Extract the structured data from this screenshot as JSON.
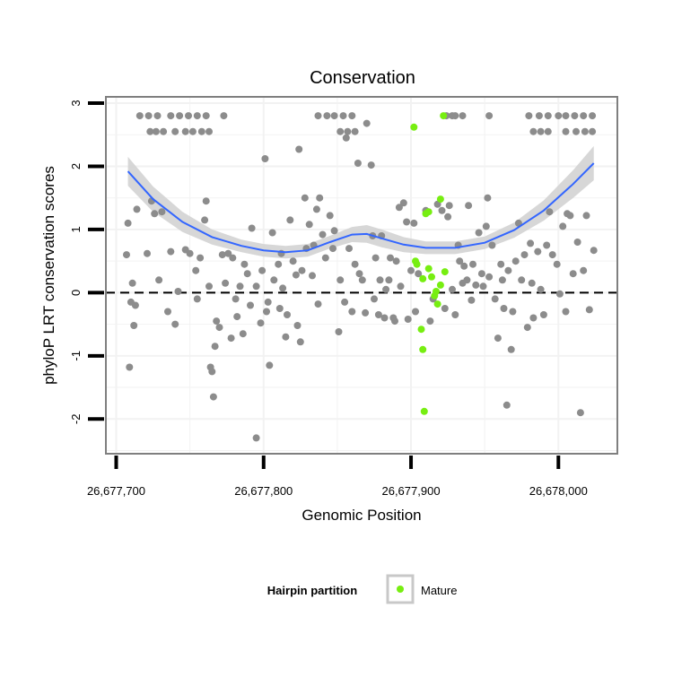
{
  "chart_data": {
    "type": "scatter",
    "title": "Conservation",
    "xlabel": "Genomic Position",
    "ylabel": "phyloP LRT conservation scores",
    "xlim": [
      26677693,
      26678040
    ],
    "ylim": [
      -2.55,
      3.1
    ],
    "x_ticks": [
      26677700,
      26677800,
      26677900,
      26678000
    ],
    "x_tick_labels": [
      "26,677,700",
      "26,677,800",
      "26,677,900",
      "26,678,000"
    ],
    "y_ticks": [
      -2,
      -1,
      0,
      1,
      2,
      3
    ],
    "y_tick_labels": [
      "-2",
      "-1",
      "0",
      "1",
      "2",
      "3"
    ],
    "reference_line": {
      "y": 0,
      "style": "dashed"
    },
    "grid": true,
    "legend": {
      "title": "Hairpin partition",
      "position": "bottom",
      "entries": [
        "Mature"
      ]
    },
    "colors": {
      "background_points": "#8c8c8c",
      "mature": "#77ee11",
      "smooth_line": "#3366ff",
      "confidence_band": "#d3d3d3",
      "panel_border": "#7f7f7f",
      "grid": "#f2f2f2"
    },
    "series": [
      {
        "name": "",
        "color": "#8c8c8c",
        "points": [
          [
            26677708,
            1.1
          ],
          [
            26677707,
            0.6
          ],
          [
            26677710,
            -0.15
          ],
          [
            26677711,
            0.15
          ],
          [
            26677709,
            -1.18
          ],
          [
            26677712,
            -0.52
          ],
          [
            26677713,
            -0.2
          ],
          [
            26677714,
            1.32
          ],
          [
            26677721,
            0.62
          ],
          [
            26677724,
            1.45
          ],
          [
            26677726,
            1.25
          ],
          [
            26677729,
            0.2
          ],
          [
            26677731,
            1.28
          ],
          [
            26677735,
            -0.3
          ],
          [
            26677737,
            0.65
          ],
          [
            26677740,
            -0.5
          ],
          [
            26677742,
            0.02
          ],
          [
            26677747,
            0.68
          ],
          [
            26677750,
            0.62
          ],
          [
            26677754,
            0.35
          ],
          [
            26677755,
            -0.1
          ],
          [
            26677757,
            0.55
          ],
          [
            26677760,
            1.15
          ],
          [
            26677761,
            1.45
          ],
          [
            26677763,
            0.1
          ],
          [
            26677764,
            -1.18
          ],
          [
            26677765,
            -1.25
          ],
          [
            26677767,
            -0.85
          ],
          [
            26677766,
            -1.65
          ],
          [
            26677768,
            -0.45
          ],
          [
            26677770,
            -0.55
          ],
          [
            26677772,
            0.6
          ],
          [
            26677774,
            0.15
          ],
          [
            26677776,
            0.62
          ],
          [
            26677778,
            -0.72
          ],
          [
            26677779,
            0.55
          ],
          [
            26677781,
            -0.1
          ],
          [
            26677782,
            -0.38
          ],
          [
            26677784,
            0.1
          ],
          [
            26677786,
            -0.65
          ],
          [
            26677787,
            0.45
          ],
          [
            26677789,
            0.3
          ],
          [
            26677791,
            -0.2
          ],
          [
            26677792,
            1.02
          ],
          [
            26677795,
            -2.3
          ],
          [
            26677795,
            0.1
          ],
          [
            26677798,
            -0.48
          ],
          [
            26677799,
            0.35
          ],
          [
            26677801,
            2.12
          ],
          [
            26677802,
            -0.3
          ],
          [
            26677803,
            -0.15
          ],
          [
            26677804,
            -1.15
          ],
          [
            26677806,
            0.95
          ],
          [
            26677807,
            0.2
          ],
          [
            26677810,
            0.45
          ],
          [
            26677811,
            -0.25
          ],
          [
            26677812,
            0.62
          ],
          [
            26677813,
            0.07
          ],
          [
            26677815,
            -0.7
          ],
          [
            26677816,
            -0.35
          ],
          [
            26677818,
            1.15
          ],
          [
            26677820,
            0.5
          ],
          [
            26677822,
            0.28
          ],
          [
            26677823,
            -0.52
          ],
          [
            26677824,
            2.27
          ],
          [
            26677825,
            -0.78
          ],
          [
            26677826,
            0.35
          ],
          [
            26677828,
            1.5
          ],
          [
            26677829,
            0.7
          ],
          [
            26677831,
            1.08
          ],
          [
            26677833,
            0.27
          ],
          [
            26677834,
            0.75
          ],
          [
            26677836,
            1.32
          ],
          [
            26677837,
            -0.18
          ],
          [
            26677838,
            1.5
          ],
          [
            26677840,
            0.92
          ],
          [
            26677842,
            0.55
          ],
          [
            26677845,
            1.22
          ],
          [
            26677847,
            0.7
          ],
          [
            26677848,
            0.98
          ],
          [
            26677851,
            -0.62
          ],
          [
            26677852,
            0.2
          ],
          [
            26677855,
            -0.15
          ],
          [
            26677856,
            2.45
          ],
          [
            26677858,
            0.7
          ],
          [
            26677860,
            -0.3
          ],
          [
            26677862,
            0.45
          ],
          [
            26677864,
            2.05
          ],
          [
            26677865,
            0.3
          ],
          [
            26677867,
            0.2
          ],
          [
            26677869,
            -0.32
          ],
          [
            26677870,
            2.68
          ],
          [
            26677873,
            2.02
          ],
          [
            26677874,
            0.9
          ],
          [
            26677875,
            -0.1
          ],
          [
            26677876,
            0.55
          ],
          [
            26677878,
            -0.35
          ],
          [
            26677879,
            0.2
          ],
          [
            26677880,
            0.9
          ],
          [
            26677882,
            -0.4
          ],
          [
            26677883,
            0.05
          ],
          [
            26677885,
            0.2
          ],
          [
            26677886,
            0.55
          ],
          [
            26677888,
            -0.4
          ],
          [
            26677889,
            -0.45
          ],
          [
            26677890,
            0.5
          ],
          [
            26677892,
            1.35
          ],
          [
            26677893,
            0.1
          ],
          [
            26677895,
            1.42
          ],
          [
            26677897,
            1.12
          ],
          [
            26677898,
            -0.42
          ],
          [
            26677900,
            0.35
          ],
          [
            26677902,
            1.1
          ],
          [
            26677903,
            -0.3
          ],
          [
            26677905,
            0.3
          ],
          [
            26677910,
            1.3
          ],
          [
            26677913,
            -0.45
          ],
          [
            26677915,
            -0.1
          ],
          [
            26677918,
            1.4
          ],
          [
            26677921,
            1.3
          ],
          [
            26677923,
            -0.25
          ],
          [
            26677925,
            1.2
          ],
          [
            26677926,
            1.38
          ],
          [
            26677928,
            0.05
          ],
          [
            26677930,
            -0.35
          ],
          [
            26677932,
            0.75
          ],
          [
            26677933,
            0.5
          ],
          [
            26677935,
            0.15
          ],
          [
            26677936,
            0.42
          ],
          [
            26677938,
            0.2
          ],
          [
            26677939,
            1.38
          ],
          [
            26677941,
            -0.12
          ],
          [
            26677942,
            0.45
          ],
          [
            26677944,
            0.12
          ],
          [
            26677946,
            0.95
          ],
          [
            26677948,
            0.3
          ],
          [
            26677949,
            0.1
          ],
          [
            26677951,
            1.05
          ],
          [
            26677952,
            1.5
          ],
          [
            26677953,
            0.25
          ],
          [
            26677955,
            0.75
          ],
          [
            26677957,
            -0.1
          ],
          [
            26677959,
            -0.72
          ],
          [
            26677961,
            0.45
          ],
          [
            26677962,
            0.2
          ],
          [
            26677963,
            -0.25
          ],
          [
            26677965,
            -1.78
          ],
          [
            26677966,
            0.35
          ],
          [
            26677968,
            -0.9
          ],
          [
            26677969,
            -0.3
          ],
          [
            26677971,
            0.5
          ],
          [
            26677973,
            1.1
          ],
          [
            26677975,
            0.2
          ],
          [
            26677977,
            0.6
          ],
          [
            26677979,
            -0.55
          ],
          [
            26677981,
            0.78
          ],
          [
            26677982,
            0.15
          ],
          [
            26677983,
            -0.4
          ],
          [
            26677986,
            0.65
          ],
          [
            26677988,
            0.05
          ],
          [
            26677990,
            -0.35
          ],
          [
            26677992,
            0.75
          ],
          [
            26677994,
            1.28
          ],
          [
            26677996,
            0.6
          ],
          [
            26677999,
            0.45
          ],
          [
            26678001,
            -0.02
          ],
          [
            26678003,
            1.05
          ],
          [
            26678005,
            -0.3
          ],
          [
            26678006,
            1.25
          ],
          [
            26678008,
            1.22
          ],
          [
            26678010,
            0.3
          ],
          [
            26678013,
            0.8
          ],
          [
            26678015,
            -1.9
          ],
          [
            26678017,
            0.35
          ],
          [
            26678019,
            1.22
          ],
          [
            26678021,
            -0.27
          ],
          [
            26678024,
            0.67
          ],
          [
            26677723,
            2.55
          ],
          [
            26677727,
            2.55
          ],
          [
            26677732,
            2.55
          ],
          [
            26677740,
            2.55
          ],
          [
            26677747,
            2.55
          ],
          [
            26677752,
            2.55
          ],
          [
            26677758,
            2.55
          ],
          [
            26677763,
            2.55
          ],
          [
            26677852,
            2.55
          ],
          [
            26677857,
            2.55
          ],
          [
            26677862,
            2.55
          ],
          [
            26677928,
            2.8
          ],
          [
            26677983,
            2.55
          ],
          [
            26677988,
            2.55
          ],
          [
            26677993,
            2.55
          ],
          [
            26678005,
            2.55
          ],
          [
            26678012,
            2.55
          ],
          [
            26678018,
            2.55
          ],
          [
            26678023,
            2.55
          ],
          [
            26677716,
            2.8
          ],
          [
            26677722,
            2.8
          ],
          [
            26677728,
            2.8
          ],
          [
            26677737,
            2.8
          ],
          [
            26677743,
            2.8
          ],
          [
            26677749,
            2.8
          ],
          [
            26677755,
            2.8
          ],
          [
            26677761,
            2.8
          ],
          [
            26677773,
            2.8
          ],
          [
            26677837,
            2.8
          ],
          [
            26677843,
            2.8
          ],
          [
            26677848,
            2.8
          ],
          [
            26677854,
            2.8
          ],
          [
            26677860,
            2.8
          ],
          [
            26677924,
            2.8
          ],
          [
            26677930,
            2.8
          ],
          [
            26677935,
            2.8
          ],
          [
            26677953,
            2.8
          ],
          [
            26677980,
            2.8
          ],
          [
            26677987,
            2.8
          ],
          [
            26677993,
            2.8
          ],
          [
            26678000,
            2.8
          ],
          [
            26678005,
            2.8
          ],
          [
            26678011,
            2.8
          ],
          [
            26678017,
            2.8
          ],
          [
            26678023,
            2.8
          ]
        ]
      },
      {
        "name": "Mature",
        "color": "#77ee11",
        "points": [
          [
            26677902,
            2.62
          ],
          [
            26677922,
            2.8
          ],
          [
            26677920,
            1.48
          ],
          [
            26677912,
            1.28
          ],
          [
            26677910,
            1.25
          ],
          [
            26677903,
            0.5
          ],
          [
            26677904,
            0.45
          ],
          [
            26677908,
            0.22
          ],
          [
            26677912,
            0.38
          ],
          [
            26677914,
            0.25
          ],
          [
            26677916,
            -0.05
          ],
          [
            26677917,
            0.02
          ],
          [
            26677918,
            -0.18
          ],
          [
            26677920,
            0.12
          ],
          [
            26677923,
            0.33
          ],
          [
            26677907,
            -0.58
          ],
          [
            26677908,
            -0.9
          ],
          [
            26677909,
            -1.88
          ]
        ]
      }
    ],
    "smooth": {
      "x": [
        26677708,
        26677725,
        26677745,
        26677765,
        26677785,
        26677800,
        26677815,
        26677830,
        26677845,
        26677860,
        26677870,
        26677880,
        26677895,
        26677910,
        26677930,
        26677950,
        26677970,
        26677990,
        26678010,
        26678024
      ],
      "y": [
        1.92,
        1.48,
        1.12,
        0.88,
        0.74,
        0.67,
        0.64,
        0.67,
        0.8,
        0.92,
        0.93,
        0.86,
        0.76,
        0.71,
        0.71,
        0.79,
        0.99,
        1.3,
        1.72,
        2.05
      ],
      "band": [
        0.23,
        0.2,
        0.16,
        0.12,
        0.1,
        0.1,
        0.1,
        0.1,
        0.1,
        0.12,
        0.14,
        0.14,
        0.12,
        0.1,
        0.1,
        0.1,
        0.12,
        0.16,
        0.22,
        0.27
      ]
    }
  }
}
